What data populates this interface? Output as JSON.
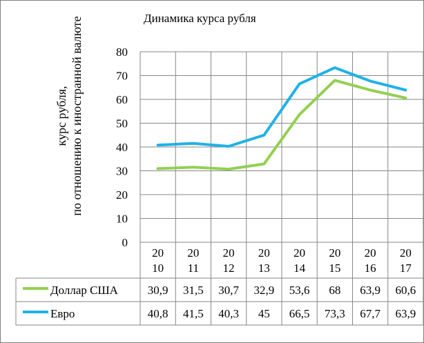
{
  "chart_data": {
    "type": "line",
    "title": "Динамика курса рубля",
    "ylabel": [
      "курс рубля,",
      "по отношению к иностранной валюте"
    ],
    "xlabel": "",
    "categories": [
      [
        "20",
        "10"
      ],
      [
        "20",
        "11"
      ],
      [
        "20",
        "12"
      ],
      [
        "20",
        "13"
      ],
      [
        "20",
        "14"
      ],
      [
        "20",
        "15"
      ],
      [
        "20",
        "16"
      ],
      [
        "20",
        "17"
      ]
    ],
    "ylim": [
      0,
      80
    ],
    "yticks": [
      "0",
      "10",
      "20",
      "30",
      "40",
      "50",
      "60",
      "70",
      "80"
    ],
    "grid": true,
    "legend": "data-table",
    "series": [
      {
        "name": "Доллар США",
        "color": "#92d050",
        "values": [
          30.9,
          31.5,
          30.7,
          32.9,
          53.6,
          68,
          63.9,
          60.6
        ],
        "labels": [
          "30,9",
          "31,5",
          "30,7",
          "32,9",
          "53,6",
          "68",
          "63,9",
          "60,6"
        ]
      },
      {
        "name": "Евро",
        "color": "#1fb2e6",
        "values": [
          40.8,
          41.5,
          40.3,
          45,
          66.5,
          73.3,
          67.7,
          63.9
        ],
        "labels": [
          "40,8",
          "41,5",
          "40,3",
          "45",
          "66,5",
          "73,3",
          "67,7",
          "63,9"
        ]
      }
    ]
  }
}
